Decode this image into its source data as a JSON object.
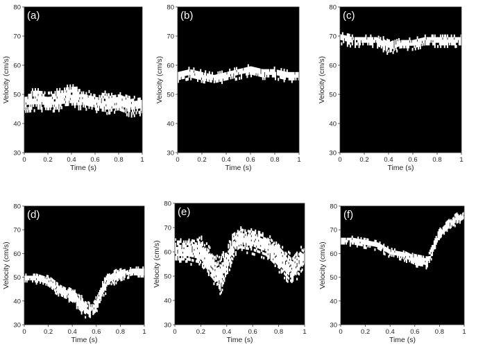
{
  "chart_data": [
    {
      "type": "heatmap",
      "panel_label": "(a)",
      "xlabel": "Time (s)",
      "ylabel": "Velocity (cm/s)",
      "xlim": [
        0,
        1
      ],
      "ylim": [
        30,
        80
      ],
      "xticks": [
        "0",
        "0.2",
        "0.4",
        "0.6",
        "0.8",
        "1"
      ],
      "yticks": [
        "30",
        "40",
        "50",
        "60",
        "70",
        "80"
      ],
      "background_color": "#000000",
      "signal_color": "#ffffff",
      "band": {
        "t": [
          0,
          0.1,
          0.2,
          0.3,
          0.4,
          0.5,
          0.6,
          0.7,
          0.8,
          0.9,
          1.0
        ],
        "center": [
          47,
          48,
          47,
          48,
          49,
          48,
          47,
          47,
          47,
          46,
          46
        ],
        "halfwidth": [
          2.5,
          3,
          2.5,
          3,
          3.5,
          2.5,
          2.5,
          3,
          2.5,
          3,
          2.5
        ]
      }
    },
    {
      "type": "heatmap",
      "panel_label": "(b)",
      "xlabel": "Time (s)",
      "ylabel": "Velocity (cm/s)",
      "xlim": [
        0,
        1
      ],
      "ylim": [
        30,
        80
      ],
      "xticks": [
        "0",
        "0.2",
        "0.4",
        "0.6",
        "0.8",
        "1"
      ],
      "yticks": [
        "30",
        "40",
        "50",
        "60",
        "70",
        "80"
      ],
      "background_color": "#000000",
      "signal_color": "#ffffff",
      "band": {
        "t": [
          0,
          0.1,
          0.2,
          0.3,
          0.4,
          0.5,
          0.6,
          0.7,
          0.8,
          0.9,
          1.0
        ],
        "center": [
          56,
          57,
          56,
          55,
          56,
          57,
          58,
          57,
          57,
          56,
          56
        ],
        "halfwidth": [
          1.5,
          1.5,
          1.5,
          1.5,
          1.5,
          1.5,
          1.5,
          1.5,
          1.5,
          1.5,
          1.5
        ]
      }
    },
    {
      "type": "heatmap",
      "panel_label": "(c)",
      "xlabel": "Time (s)",
      "ylabel": "Velocity (cm/s)",
      "xlim": [
        0,
        1
      ],
      "ylim": [
        30,
        80
      ],
      "xticks": [
        "0",
        "0.2",
        "0.4",
        "0.6",
        "0.8",
        "1"
      ],
      "yticks": [
        "30",
        "40",
        "50",
        "60",
        "70",
        "80"
      ],
      "background_color": "#000000",
      "signal_color": "#ffffff",
      "band": {
        "t": [
          0,
          0.1,
          0.2,
          0.3,
          0.4,
          0.5,
          0.6,
          0.7,
          0.8,
          0.9,
          1.0
        ],
        "center": [
          69,
          68,
          68,
          68,
          66,
          67,
          67,
          68,
          68,
          68,
          68
        ],
        "halfwidth": [
          1.5,
          1.5,
          1.5,
          1.5,
          2,
          1.5,
          1.5,
          1.5,
          1.5,
          1.5,
          1.5
        ]
      }
    },
    {
      "type": "heatmap",
      "panel_label": "(d)",
      "xlabel": "Time (s)",
      "ylabel": "Velocity (cm/s)",
      "xlim": [
        0,
        1
      ],
      "ylim": [
        30,
        80
      ],
      "xticks": [
        "0",
        "0.2",
        "0.4",
        "0.6",
        "0.8",
        "1"
      ],
      "yticks": [
        "30",
        "40",
        "50",
        "60",
        "70",
        "80"
      ],
      "background_color": "#000000",
      "signal_color": "#ffffff",
      "band": {
        "t": [
          0,
          0.1,
          0.2,
          0.3,
          0.4,
          0.5,
          0.55,
          0.6,
          0.65,
          0.7,
          0.8,
          0.9,
          1.0
        ],
        "center": [
          49,
          49,
          48,
          44,
          42,
          37,
          35,
          38,
          44,
          49,
          51,
          52,
          52
        ],
        "halfwidth": [
          1.5,
          1.5,
          2,
          2,
          2.5,
          3,
          3,
          3,
          3,
          3,
          2,
          1.5,
          1.5
        ]
      }
    },
    {
      "type": "heatmap",
      "panel_label": "(e)",
      "xlabel": "Time (s)",
      "ylabel": "Velocity (cm/s)",
      "xlim": [
        0,
        1
      ],
      "ylim": [
        30,
        80
      ],
      "xticks": [
        "0",
        "0.2",
        "0.4",
        "0.6",
        "0.8",
        "1"
      ],
      "yticks": [
        "30",
        "40",
        "50",
        "60",
        "70",
        "80"
      ],
      "background_color": "#000000",
      "signal_color": "#ffffff",
      "band": {
        "t": [
          0,
          0.1,
          0.2,
          0.3,
          0.35,
          0.4,
          0.45,
          0.5,
          0.6,
          0.7,
          0.8,
          0.9,
          1.0
        ],
        "center": [
          60,
          60,
          60,
          53,
          50,
          55,
          63,
          65,
          64,
          62,
          58,
          52,
          58
        ],
        "halfwidth": [
          4,
          4,
          5,
          5,
          6,
          5,
          4,
          4,
          4,
          4,
          5,
          5,
          4
        ]
      }
    },
    {
      "type": "heatmap",
      "panel_label": "(f)",
      "xlabel": "Time (s)",
      "ylabel": "Velocity (cm/s)",
      "xlim": [
        0,
        1
      ],
      "ylim": [
        30,
        80
      ],
      "xticks": [
        "0",
        "0.2",
        "0.4",
        "0.6",
        "0.8",
        "1"
      ],
      "yticks": [
        "30",
        "40",
        "50",
        "60",
        "70",
        "80"
      ],
      "background_color": "#000000",
      "signal_color": "#ffffff",
      "band": {
        "t": [
          0,
          0.1,
          0.2,
          0.3,
          0.4,
          0.5,
          0.6,
          0.7,
          0.75,
          0.8,
          0.9,
          1.0
        ],
        "center": [
          65,
          65,
          64,
          63,
          60,
          59,
          57,
          56,
          62,
          68,
          73,
          76
        ],
        "halfwidth": [
          1.5,
          1.5,
          1.5,
          1.5,
          1.5,
          1.5,
          2,
          2,
          2,
          2,
          2,
          1.5
        ]
      }
    }
  ]
}
